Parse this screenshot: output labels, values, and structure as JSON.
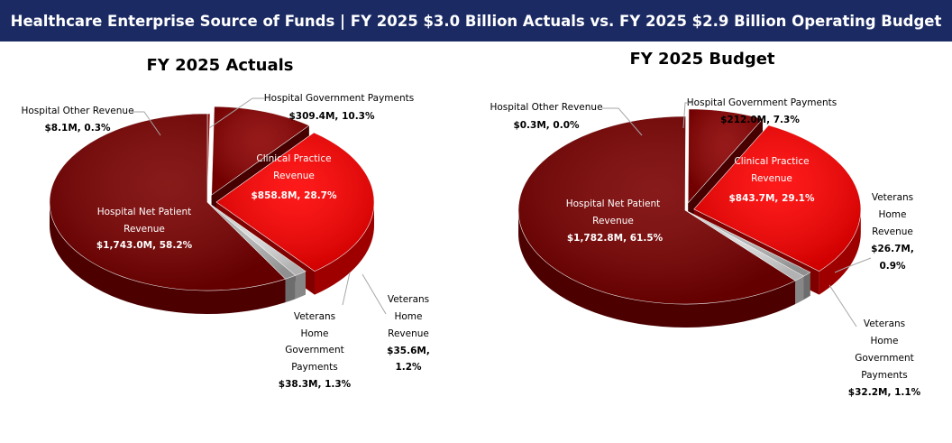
{
  "header": {
    "title": "Healthcare Enterprise Source of Funds | FY 2025 $3.0 Billion Actuals vs. FY 2025 $2.9 Billion Operating Budget",
    "background": "#1b2a63"
  },
  "colors": {
    "hospital_net_patient": "#7a0000",
    "clinical_practice": "#ff0000",
    "hospital_government": "#8b0000",
    "hospital_other": "#a00000",
    "veterans_home_revenue": "#b0b0b0",
    "veterans_home_government": "#d9d9d9"
  },
  "chart_data": [
    {
      "type": "pie",
      "title": "FY 2025 Actuals",
      "slices": [
        {
          "key": "hospital_other",
          "label": "Hospital Other Revenue",
          "value": 8.1,
          "percent": 0.3,
          "value_text": "$8.1M, 0.3%"
        },
        {
          "key": "hospital_government",
          "label": "Hospital Government Payments",
          "value": 309.4,
          "percent": 10.3,
          "value_text": "$309.4M, 10.3%"
        },
        {
          "key": "clinical_practice",
          "label": "Clinical Practice Revenue",
          "value": 858.8,
          "percent": 28.7,
          "value_text": "$858.8M, 28.7%"
        },
        {
          "key": "veterans_home_government",
          "label": "Veterans Home Government Payments",
          "value": 38.3,
          "percent": 1.3,
          "value_text": "$38.3M, 1.3%"
        },
        {
          "key": "veterans_home_revenue",
          "label": "Veterans Home Revenue",
          "value": 35.6,
          "percent": 1.2,
          "value_text": "$35.6M, 1.2%"
        },
        {
          "key": "hospital_net_patient",
          "label": "Hospital Net Patient Revenue",
          "value": 1743.0,
          "percent": 58.2,
          "value_text": "$1,743.0M, 58.2%"
        }
      ]
    },
    {
      "type": "pie",
      "title": "FY 2025 Budget",
      "slices": [
        {
          "key": "hospital_other",
          "label": "Hospital Other Revenue",
          "value": 0.3,
          "percent": 0.0,
          "value_text": "$0.3M, 0.0%"
        },
        {
          "key": "hospital_government",
          "label": "Hospital Government Payments",
          "value": 212.0,
          "percent": 7.3,
          "value_text": "$212.0M, 7.3%"
        },
        {
          "key": "clinical_practice",
          "label": "Clinical Practice Revenue",
          "value": 843.7,
          "percent": 29.1,
          "value_text": "$843.7M, 29.1%"
        },
        {
          "key": "veterans_home_revenue",
          "label": "Veterans Home Revenue",
          "value": 26.7,
          "percent": 0.9,
          "value_text": "$26.7M, 0.9%"
        },
        {
          "key": "veterans_home_government",
          "label": "Veterans Home Government Payments",
          "value": 32.2,
          "percent": 1.1,
          "value_text": "$32.2M, 1.1%"
        },
        {
          "key": "hospital_net_patient",
          "label": "Hospital Net Patient Revenue",
          "value": 1782.8,
          "percent": 61.5,
          "value_text": "$1,782.8M, 61.5%"
        }
      ]
    }
  ]
}
